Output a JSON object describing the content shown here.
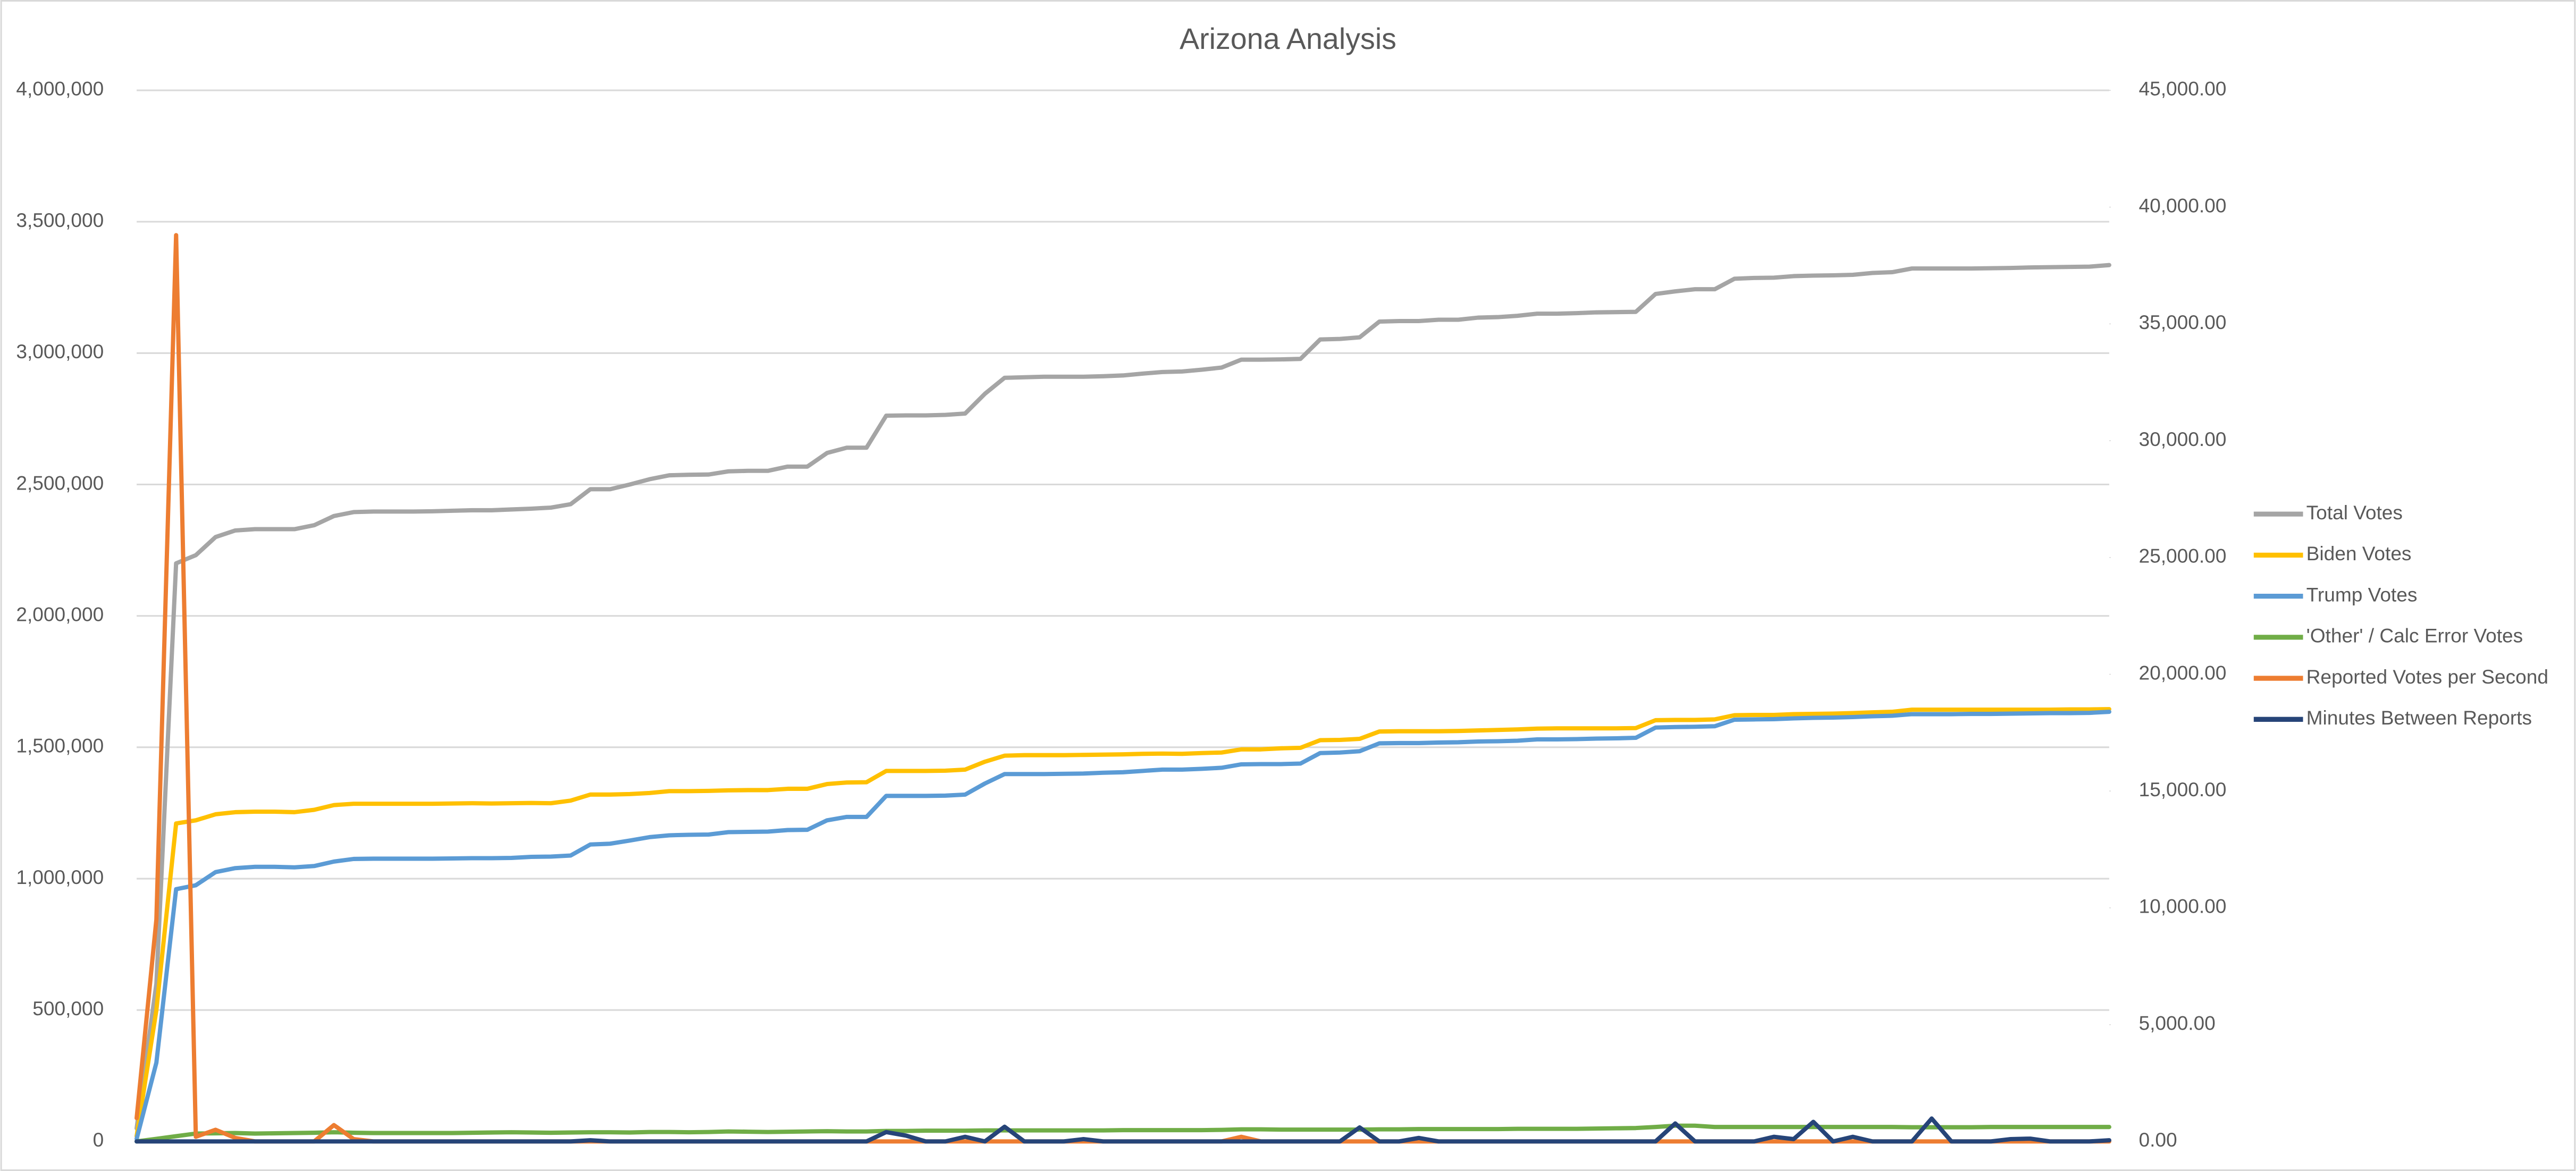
{
  "chart_data": {
    "type": "line",
    "title": "Arizona Analysis",
    "categories": [
      null,
      null,
      null,
      null,
      null,
      null,
      null,
      null,
      null,
      null,
      null,
      null,
      null,
      null,
      null,
      null,
      null,
      null,
      null,
      null,
      null,
      null,
      null,
      null,
      null,
      null,
      null,
      null,
      null,
      null,
      null,
      null,
      null,
      null,
      null,
      null,
      null,
      null,
      null,
      null,
      null,
      null,
      null,
      null,
      null,
      null,
      null,
      null,
      null,
      null,
      null,
      null,
      null,
      null,
      null,
      null,
      null,
      null,
      null,
      null,
      null,
      null,
      null,
      null,
      null,
      null,
      null,
      null,
      null,
      null,
      null,
      null,
      null,
      null,
      null,
      null,
      null,
      null,
      null,
      null,
      null,
      null,
      null,
      null,
      null,
      null,
      null,
      null,
      null,
      null,
      null,
      null,
      null,
      null,
      null,
      null,
      null,
      null,
      null,
      null,
      null
    ],
    "ylim": [
      0,
      4000000
    ],
    "yticks": [
      0,
      {
        "value": 500000,
        "label": "500,000"
      },
      {
        "value": 1000000,
        "label": "1,000,000"
      },
      {
        "value": 1500000,
        "label": "1,500,000"
      },
      {
        "value": 2000000,
        "label": "2,000,000"
      },
      {
        "value": 2500000,
        "label": "2,500,000"
      },
      {
        "value": 3000000,
        "label": "3,000,000"
      },
      {
        "value": 3500000,
        "label": "3,500,000"
      },
      {
        "value": 4000000,
        "label": "4,000,000"
      }
    ],
    "y2lim": [
      0,
      45000
    ],
    "y2ticks": [
      {
        "value": 0,
        "label": "0.00"
      },
      {
        "value": 5000,
        "label": "5,000.00"
      },
      {
        "value": 10000,
        "label": "10,000.00"
      },
      {
        "value": 15000,
        "label": "15,000.00"
      },
      {
        "value": 20000,
        "label": "20,000.00"
      },
      {
        "value": 25000,
        "label": "25,000.00"
      },
      {
        "value": 30000,
        "label": "30,000.00"
      },
      {
        "value": 35000,
        "label": "35,000.00"
      },
      {
        "value": 40000,
        "label": "40,000.00"
      },
      {
        "value": 45000,
        "label": "45,000.00"
      }
    ],
    "grid": true,
    "legend": "right",
    "series": [
      {
        "name": "Total Votes",
        "color": "#a5a5a5",
        "values": [
          50000,
          600000,
          2200000,
          2231000,
          2300000,
          2325000,
          2330000,
          2330000,
          2330000,
          2345000,
          2380000,
          2395000,
          2397000,
          2397000,
          2397000,
          2398000,
          2400000,
          2402000,
          2402000,
          2405000,
          2408000,
          2412000,
          2425000,
          2482000,
          2482000,
          2500000,
          2520000,
          2535000,
          2537000,
          2538000,
          2550000,
          2552000,
          2552000,
          2568000,
          2568000,
          2620000,
          2640000,
          2640000,
          2762000,
          2763000,
          2763000,
          2765000,
          2770000,
          2845000,
          2906000,
          2908000,
          2910000,
          2910000,
          2910000,
          2912000,
          2915000,
          2922000,
          2928000,
          2930000,
          2937000,
          2945000,
          2975000,
          2975000,
          2976000,
          2978000,
          3052000,
          3054000,
          3060000,
          3120000,
          3122000,
          3122000,
          3127000,
          3127000,
          3135000,
          3137000,
          3142000,
          3150000,
          3150000,
          3152000,
          3155000,
          3156000,
          3157000,
          3225000,
          3235000,
          3243000,
          3243000,
          3283000,
          3286000,
          3287000,
          3293000,
          3295000,
          3296000,
          3298000,
          3305000,
          3308000,
          3322000,
          3322000,
          3322000,
          3322000,
          3323000,
          3324000,
          3326000,
          3327000,
          3328000,
          3329000,
          3335000
        ]
      },
      {
        "name": "Biden Votes",
        "color": "#ffc000",
        "values": [
          20000,
          500000,
          1210000,
          1222000,
          1245000,
          1253000,
          1255000,
          1255000,
          1253000,
          1262000,
          1280000,
          1285000,
          1285000,
          1285000,
          1285000,
          1285000,
          1286000,
          1287000,
          1286000,
          1287000,
          1288000,
          1287000,
          1297000,
          1320000,
          1320000,
          1322000,
          1326000,
          1333000,
          1333000,
          1334000,
          1336000,
          1337000,
          1337000,
          1342000,
          1342000,
          1360000,
          1366000,
          1367000,
          1410000,
          1410000,
          1410000,
          1411000,
          1415000,
          1445000,
          1468000,
          1470000,
          1470000,
          1470000,
          1471000,
          1472000,
          1473000,
          1475000,
          1476000,
          1475000,
          1478000,
          1480000,
          1492000,
          1492000,
          1496000,
          1498000,
          1527000,
          1528000,
          1532000,
          1560000,
          1561000,
          1561000,
          1561000,
          1562000,
          1564000,
          1566000,
          1568000,
          1571000,
          1572000,
          1572000,
          1572000,
          1572000,
          1573000,
          1603000,
          1604000,
          1604000,
          1606000,
          1622000,
          1623000,
          1623000,
          1626000,
          1627000,
          1628000,
          1630000,
          1633000,
          1635000,
          1643000,
          1643000,
          1643000,
          1643000,
          1643000,
          1643000,
          1643000,
          1643000,
          1644000,
          1644000,
          1645000
        ]
      },
      {
        "name": "Trump Votes",
        "color": "#5b9bd5",
        "values": [
          10000,
          300000,
          960000,
          975000,
          1025000,
          1040000,
          1045000,
          1045000,
          1043000,
          1048000,
          1065000,
          1075000,
          1076000,
          1076000,
          1076000,
          1076000,
          1077000,
          1078000,
          1078000,
          1079000,
          1083000,
          1084000,
          1088000,
          1130000,
          1133000,
          1145000,
          1158000,
          1165000,
          1167000,
          1168000,
          1177000,
          1178000,
          1179000,
          1185000,
          1186000,
          1222000,
          1235000,
          1235000,
          1315000,
          1315000,
          1315000,
          1316000,
          1320000,
          1362000,
          1398000,
          1398000,
          1398000,
          1399000,
          1400000,
          1403000,
          1405000,
          1410000,
          1415000,
          1415000,
          1418000,
          1422000,
          1435000,
          1436000,
          1436000,
          1438000,
          1478000,
          1480000,
          1485000,
          1515000,
          1516000,
          1516000,
          1518000,
          1519000,
          1522000,
          1523000,
          1525000,
          1530000,
          1530000,
          1531000,
          1533000,
          1534000,
          1536000,
          1575000,
          1577000,
          1578000,
          1580000,
          1605000,
          1606000,
          1607000,
          1610000,
          1612000,
          1613000,
          1615000,
          1618000,
          1620000,
          1626000,
          1626000,
          1626000,
          1627000,
          1627000,
          1628000,
          1629000,
          1630000,
          1630000,
          1631000,
          1635000
        ]
      },
      {
        "name": "'Other' / Calc Error Votes",
        "color": "#70ad47",
        "values": [
          0,
          10000,
          20000,
          30000,
          31000,
          32000,
          30000,
          31000,
          32000,
          33000,
          35000,
          33000,
          32000,
          32000,
          32000,
          32000,
          32000,
          33000,
          34000,
          35000,
          34000,
          33000,
          34000,
          35000,
          35000,
          34000,
          36000,
          36000,
          35000,
          36000,
          38000,
          37000,
          36000,
          37000,
          38000,
          39000,
          38000,
          38000,
          40000,
          40000,
          41000,
          41000,
          41000,
          42000,
          42000,
          42000,
          42000,
          42000,
          42000,
          42000,
          43000,
          43000,
          43000,
          43000,
          43000,
          44000,
          46000,
          46000,
          45000,
          45000,
          45000,
          45000,
          45000,
          46000,
          46000,
          47000,
          47000,
          47000,
          47000,
          47000,
          48000,
          48000,
          48000,
          48000,
          49000,
          50000,
          51000,
          55000,
          60000,
          60000,
          55000,
          55000,
          55000,
          55000,
          55000,
          55000,
          55000,
          55000,
          55000,
          55000,
          54000,
          54000,
          54000,
          54000,
          55000,
          55000,
          55000,
          55000,
          55000,
          55000,
          55000
        ]
      },
      {
        "name": "Reported Votes per Second",
        "color": "#ed7d31",
        "axis": "y2",
        "values": [
          1000,
          9500,
          38800,
          200,
          500,
          150,
          0,
          0,
          0,
          0,
          700,
          100,
          0,
          0,
          0,
          0,
          0,
          0,
          0,
          0,
          0,
          0,
          0,
          0,
          0,
          0,
          0,
          0,
          0,
          0,
          0,
          0,
          0,
          0,
          0,
          0,
          0,
          0,
          0,
          0,
          0,
          0,
          0,
          0,
          0,
          0,
          0,
          0,
          0,
          0,
          0,
          0,
          0,
          0,
          0,
          0,
          200,
          0,
          0,
          0,
          0,
          0,
          0,
          0,
          0,
          0,
          0,
          0,
          0,
          0,
          0,
          0,
          0,
          0,
          0,
          0,
          0,
          0,
          0,
          0,
          0,
          0,
          0,
          0,
          0,
          0,
          0,
          0,
          0,
          0,
          0,
          0,
          0,
          0,
          0,
          0,
          0,
          0,
          0,
          0,
          0
        ]
      },
      {
        "name": "Minutes Between Reports",
        "color": "#264478",
        "axis": "y2",
        "values": [
          0,
          0,
          0,
          0,
          0,
          0,
          0,
          0,
          0,
          0,
          0,
          0,
          0,
          0,
          0,
          0,
          0,
          0,
          0,
          0,
          0,
          0,
          0,
          50,
          0,
          0,
          0,
          0,
          0,
          0,
          0,
          0,
          0,
          0,
          0,
          0,
          0,
          0,
          400,
          250,
          0,
          0,
          200,
          0,
          630,
          0,
          0,
          0,
          100,
          0,
          0,
          0,
          0,
          0,
          0,
          0,
          0,
          0,
          0,
          0,
          0,
          0,
          600,
          0,
          0,
          150,
          0,
          0,
          0,
          0,
          0,
          0,
          0,
          0,
          0,
          0,
          0,
          0,
          770,
          0,
          0,
          0,
          0,
          200,
          100,
          840,
          0,
          200,
          0,
          0,
          0,
          980,
          0,
          0,
          0,
          100,
          120,
          0,
          0,
          0,
          50
        ]
      }
    ]
  }
}
